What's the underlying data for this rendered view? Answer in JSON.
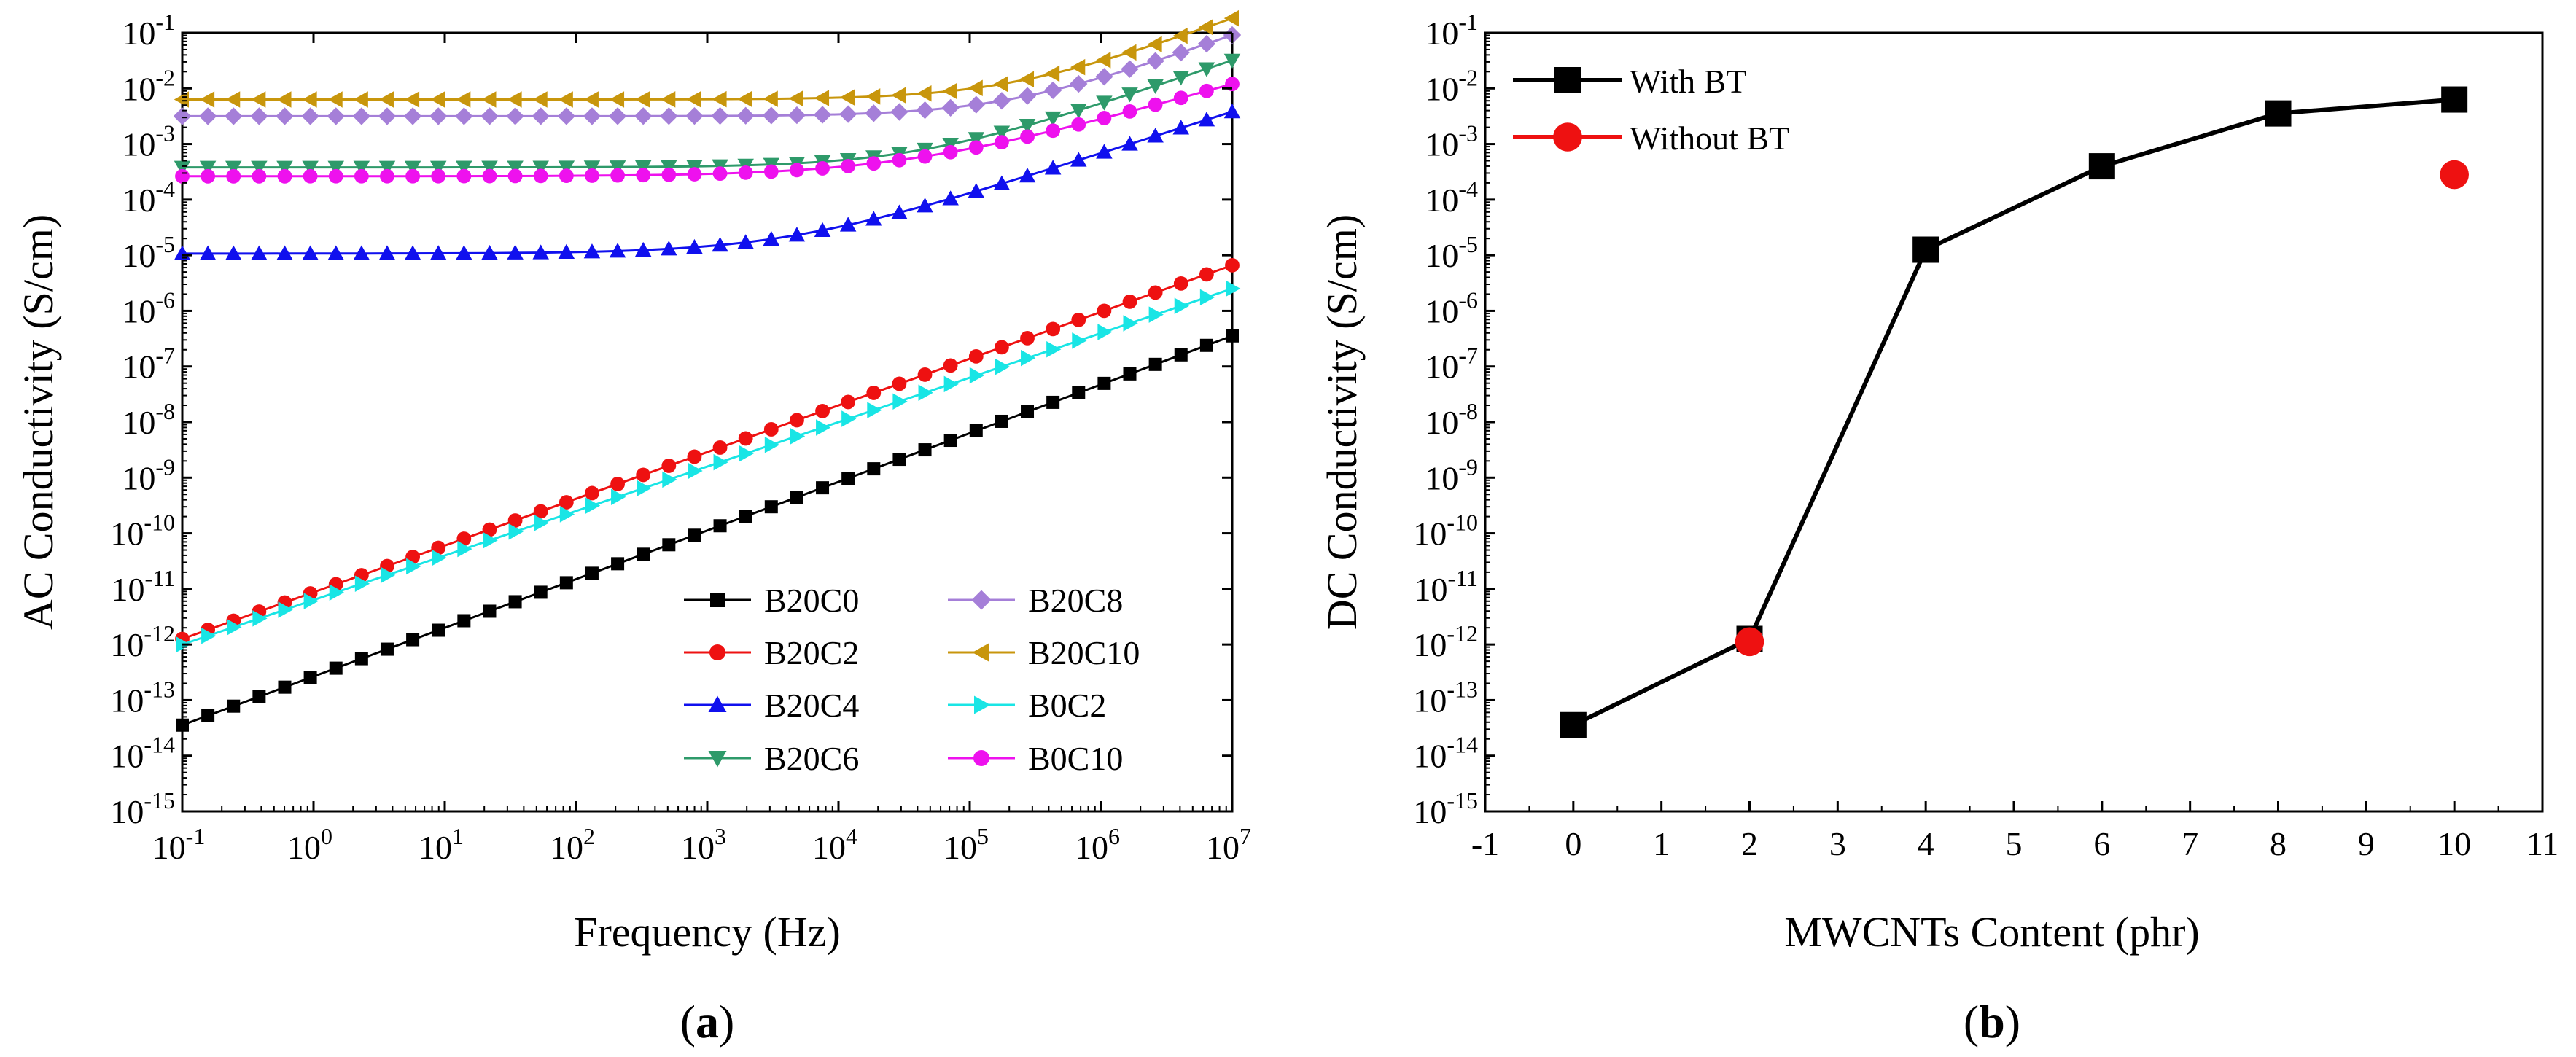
{
  "chart_data": [
    {
      "id": "a",
      "type": "line",
      "caption": {
        "open": "(",
        "letter": "a",
        "close": ")"
      },
      "xlabel": "Frequency (Hz)",
      "ylabel": "AC Conductivity (S/cm)",
      "x_scale": "log",
      "y_scale": "log",
      "xlim": [
        0.1,
        10000000
      ],
      "ylim": [
        1e-15,
        0.1
      ],
      "x_tick_exponents": [
        "-1",
        "0",
        "1",
        "2",
        "3",
        "4",
        "5",
        "6",
        "7"
      ],
      "y_tick_exponents": [
        "-15",
        "-14",
        "-13",
        "-12",
        "-11",
        "-10",
        "-9",
        "-8",
        "-7",
        "-6",
        "-5",
        "-4",
        "-3",
        "-2",
        "-1"
      ],
      "tick_base": "10",
      "legend_location": "bottom-right",
      "points_per_series": 42,
      "series": [
        {
          "name": "B20C0",
          "color": "#000000",
          "marker": "square",
          "log_sigma_low_f": -13.45,
          "plateau_log_sigma": -20,
          "slope": 0.875
        },
        {
          "name": "B20C2",
          "color": "#ee1111",
          "marker": "circle",
          "log_sigma_low_f": -11.9,
          "plateau_log_sigma": -20,
          "slope": 0.84
        },
        {
          "name": "B20C4",
          "color": "#1010ee",
          "marker": "triangle-up",
          "log_sigma_low_f": -4.97,
          "plateau_log_sigma": -4.97,
          "slope": 0.75
        },
        {
          "name": "B20C6",
          "color": "#2e9a6a",
          "marker": "triangle-down",
          "log_sigma_low_f": -3.42,
          "plateau_log_sigma": -3.42,
          "slope": 0.8
        },
        {
          "name": "B20C8",
          "color": "#a57fd8",
          "marker": "diamond",
          "log_sigma_low_f": -2.5,
          "plateau_log_sigma": -2.5,
          "slope": 0.85
        },
        {
          "name": "B20C10",
          "color": "#c8960c",
          "marker": "triangle-left",
          "log_sigma_low_f": -2.2,
          "plateau_log_sigma": -2.2,
          "slope": 0.85
        },
        {
          "name": "B0C2",
          "color": "#19e5e5",
          "marker": "triangle-right",
          "log_sigma_low_f": -12.0,
          "plateau_log_sigma": -20,
          "slope": 0.8
        },
        {
          "name": "B0C10",
          "color": "#ee11ee",
          "marker": "circle",
          "log_sigma_low_f": -3.58,
          "plateau_log_sigma": -3.58,
          "slope": 0.66
        }
      ]
    },
    {
      "id": "b",
      "type": "line",
      "caption": {
        "open": "(",
        "letter": "b",
        "close": ")"
      },
      "xlabel": "MWCNTs Content (phr)",
      "ylabel": "DC Conductivity (S/cm)",
      "x_scale": "linear",
      "y_scale": "log",
      "xlim": [
        -1,
        11
      ],
      "ylim": [
        1e-15,
        0.1
      ],
      "x_ticks": [
        "-1",
        "0",
        "1",
        "2",
        "3",
        "4",
        "5",
        "6",
        "7",
        "8",
        "9",
        "10",
        "11"
      ],
      "y_tick_exponents": [
        "-15",
        "-14",
        "-13",
        "-12",
        "-11",
        "-10",
        "-9",
        "-8",
        "-7",
        "-6",
        "-5",
        "-4",
        "-3",
        "-2",
        "-1"
      ],
      "tick_base": "10",
      "legend_location": "top-left",
      "series": [
        {
          "name": "With BT",
          "color": "#000000",
          "marker": "square",
          "line": true,
          "x": [
            0,
            2,
            4,
            6,
            8,
            10
          ],
          "log_y": [
            -13.45,
            -11.9,
            -4.9,
            -3.4,
            -2.45,
            -2.2
          ]
        },
        {
          "name": "Without BT",
          "color": "#ee1111",
          "marker": "circle",
          "line": false,
          "x": [
            2,
            10
          ],
          "log_y": [
            -11.95,
            -3.55
          ]
        }
      ]
    }
  ]
}
